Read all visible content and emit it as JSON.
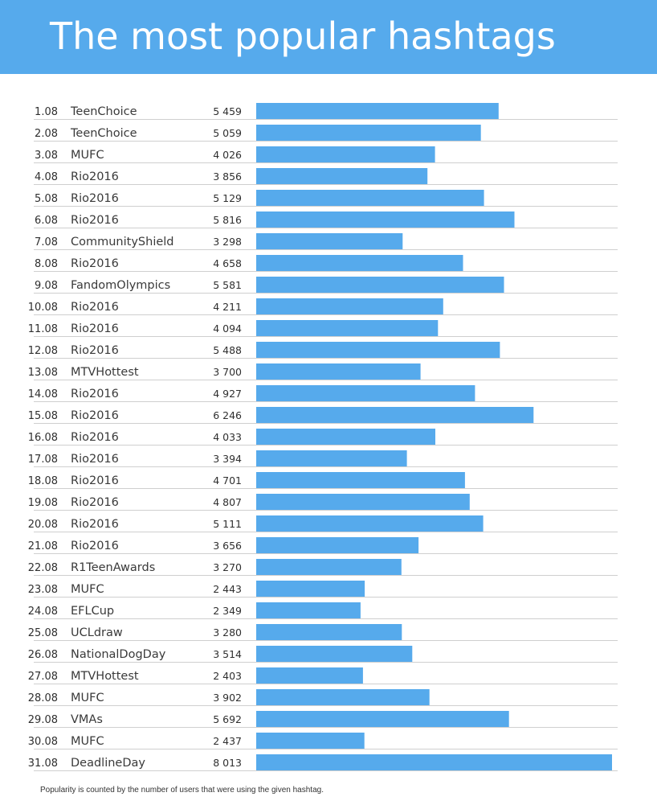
{
  "header": {
    "title": "The most popular hashtags"
  },
  "footnote": "Popularity is counted by the number of users that were using the given hashtag.",
  "colors": {
    "header_bg": "#56aaec",
    "bar": "#56aaec",
    "rule": "#cfcfcf",
    "text": "#2f2f2f"
  },
  "chart_data": {
    "type": "bar",
    "orientation": "horizontal",
    "title": "The most popular hashtags",
    "xlim": [
      0,
      8013
    ],
    "categories": [
      "1.08",
      "2.08",
      "3.08",
      "4.08",
      "5.08",
      "6.08",
      "7.08",
      "8.08",
      "9.08",
      "10.08",
      "11.08",
      "12.08",
      "13.08",
      "14.08",
      "15.08",
      "16.08",
      "17.08",
      "18.08",
      "19.08",
      "20.08",
      "21.08",
      "22.08",
      "23.08",
      "24.08",
      "25.08",
      "26.08",
      "27.08",
      "28.08",
      "29.08",
      "30.08",
      "31.08"
    ],
    "hashtags": [
      "TeenChoice",
      "TeenChoice",
      "MUFC",
      "Rio2016",
      "Rio2016",
      "Rio2016",
      "CommunityShield",
      "Rio2016",
      "FandomOlympics",
      "Rio2016",
      "Rio2016",
      "Rio2016",
      "MTVHottest",
      "Rio2016",
      "Rio2016",
      "Rio2016",
      "Rio2016",
      "Rio2016",
      "Rio2016",
      "Rio2016",
      "Rio2016",
      "R1TeenAwards",
      "MUFC",
      "EFLCup",
      "UCLdraw",
      "NationalDogDay",
      "MTVHottest",
      "MUFC",
      "VMAs",
      "MUFC",
      "DeadlineDay"
    ],
    "value_labels": [
      "5 459",
      "5 059",
      "4 026",
      "3 856",
      "5 129",
      "5 816",
      "3 298",
      "4 658",
      "5 581",
      "4 211",
      "4 094",
      "5 488",
      "3 700",
      "4 927",
      "6 246",
      "4 033",
      "3 394",
      "4 701",
      "4 807",
      "5 111",
      "3 656",
      "3 270",
      "2 443",
      "2 349",
      "3 280",
      "3 514",
      "2 403",
      "3 902",
      "5 692",
      "2 437",
      "8 013"
    ],
    "values": [
      5459,
      5059,
      4026,
      3856,
      5129,
      5816,
      3298,
      4658,
      5581,
      4211,
      4094,
      5488,
      3700,
      4927,
      6246,
      4033,
      3394,
      4701,
      4807,
      5111,
      3656,
      3270,
      2443,
      2349,
      3280,
      3514,
      2403,
      3902,
      5692,
      2437,
      8013
    ]
  }
}
